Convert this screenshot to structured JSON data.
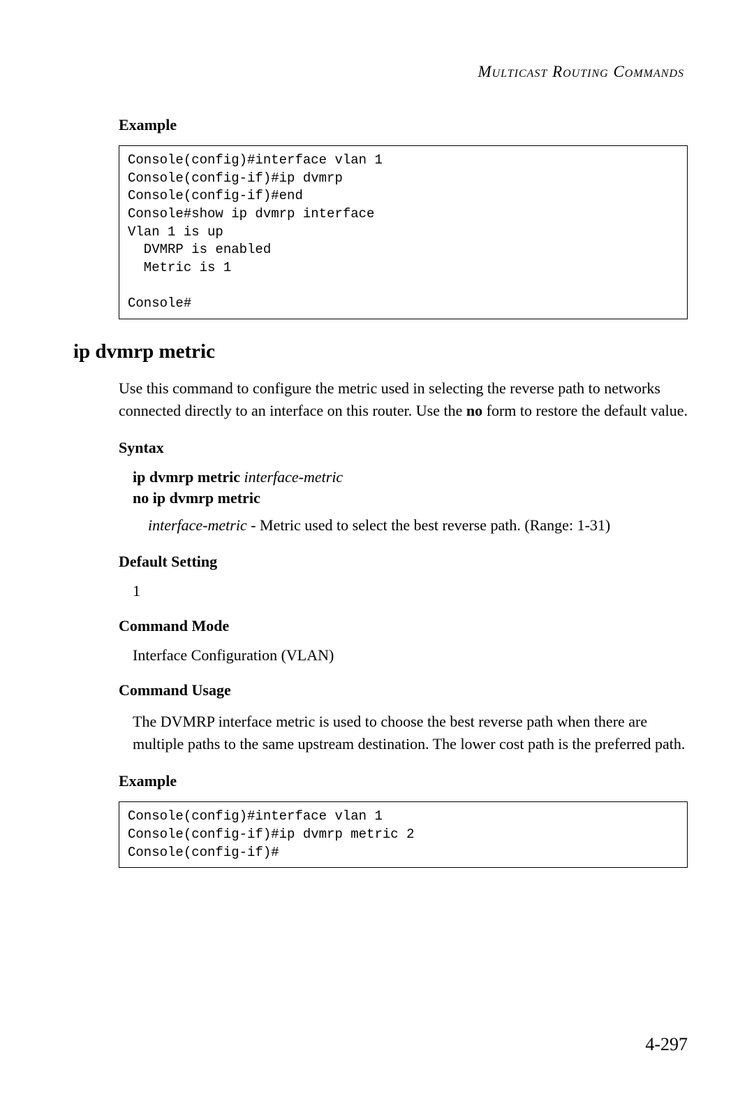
{
  "header": {
    "title": "Multicast Routing Commands"
  },
  "topSection": {
    "heading": "Example",
    "codeLines": "Console(config)#interface vlan 1\nConsole(config-if)#ip dvmrp\nConsole(config-if)#end\nConsole#show ip dvmrp interface\nVlan 1 is up\n  DVMRP is enabled\n  Metric is 1\n\nConsole#"
  },
  "command": {
    "title": "ip dvmrp metric",
    "descriptionPrefix": "Use this command to configure the metric used in selecting the reverse path to networks connected directly to an interface on this router. Use the ",
    "descriptionBold": "no",
    "descriptionSuffix": " form to restore the default value.",
    "syntax": {
      "heading": "Syntax",
      "line1Bold": "ip dvmrp metric ",
      "line1Italic": "interface-metric",
      "line2Bold": "no ip dvmrp metric",
      "paramItalic": "interface-metric",
      "paramText": " - Metric used to select the best reverse path. (Range: 1-31)"
    },
    "defaultSetting": {
      "heading": "Default Setting",
      "value": "1"
    },
    "commandMode": {
      "heading": "Command Mode",
      "value": "Interface Configuration (VLAN)"
    },
    "commandUsage": {
      "heading": "Command Usage",
      "text": "The DVMRP interface metric is used to choose the best reverse path when there are multiple paths to the same upstream destination. The lower cost path is the preferred path."
    },
    "example": {
      "heading": "Example",
      "codeLines": "Console(config)#interface vlan 1\nConsole(config-if)#ip dvmrp metric 2\nConsole(config-if)#"
    }
  },
  "pageNumber": "4-297"
}
